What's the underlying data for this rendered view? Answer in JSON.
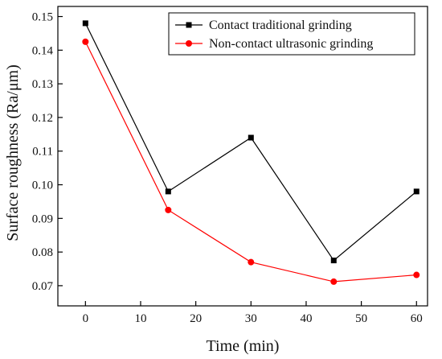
{
  "chart_data": {
    "type": "line",
    "title": "",
    "xlabel": "Time (min)",
    "ylabel": "Surface roughness (Ra/μm)",
    "xlim": [
      -5,
      62
    ],
    "ylim": [
      0.064,
      0.153
    ],
    "xticks": [
      0,
      10,
      20,
      30,
      40,
      50,
      60
    ],
    "yticks": [
      0.07,
      0.08,
      0.09,
      0.1,
      0.11,
      0.12,
      0.13,
      0.14,
      0.15
    ],
    "ytick_labels": [
      "0.07",
      "0.08",
      "0.09",
      "0.10",
      "0.11",
      "0.12",
      "0.13",
      "0.14",
      "0.15"
    ],
    "grid": false,
    "legend_position": "top-right",
    "x": [
      0,
      15,
      30,
      45,
      60
    ],
    "series": [
      {
        "name": "Contact traditional grinding",
        "values": [
          0.148,
          0.098,
          0.114,
          0.0775,
          0.098
        ],
        "color": "#000000",
        "marker": "square"
      },
      {
        "name": "Non-contact ultrasonic grinding",
        "values": [
          0.1425,
          0.0925,
          0.077,
          0.0712,
          0.0732
        ],
        "color": "#ff0000",
        "marker": "circle"
      }
    ]
  }
}
